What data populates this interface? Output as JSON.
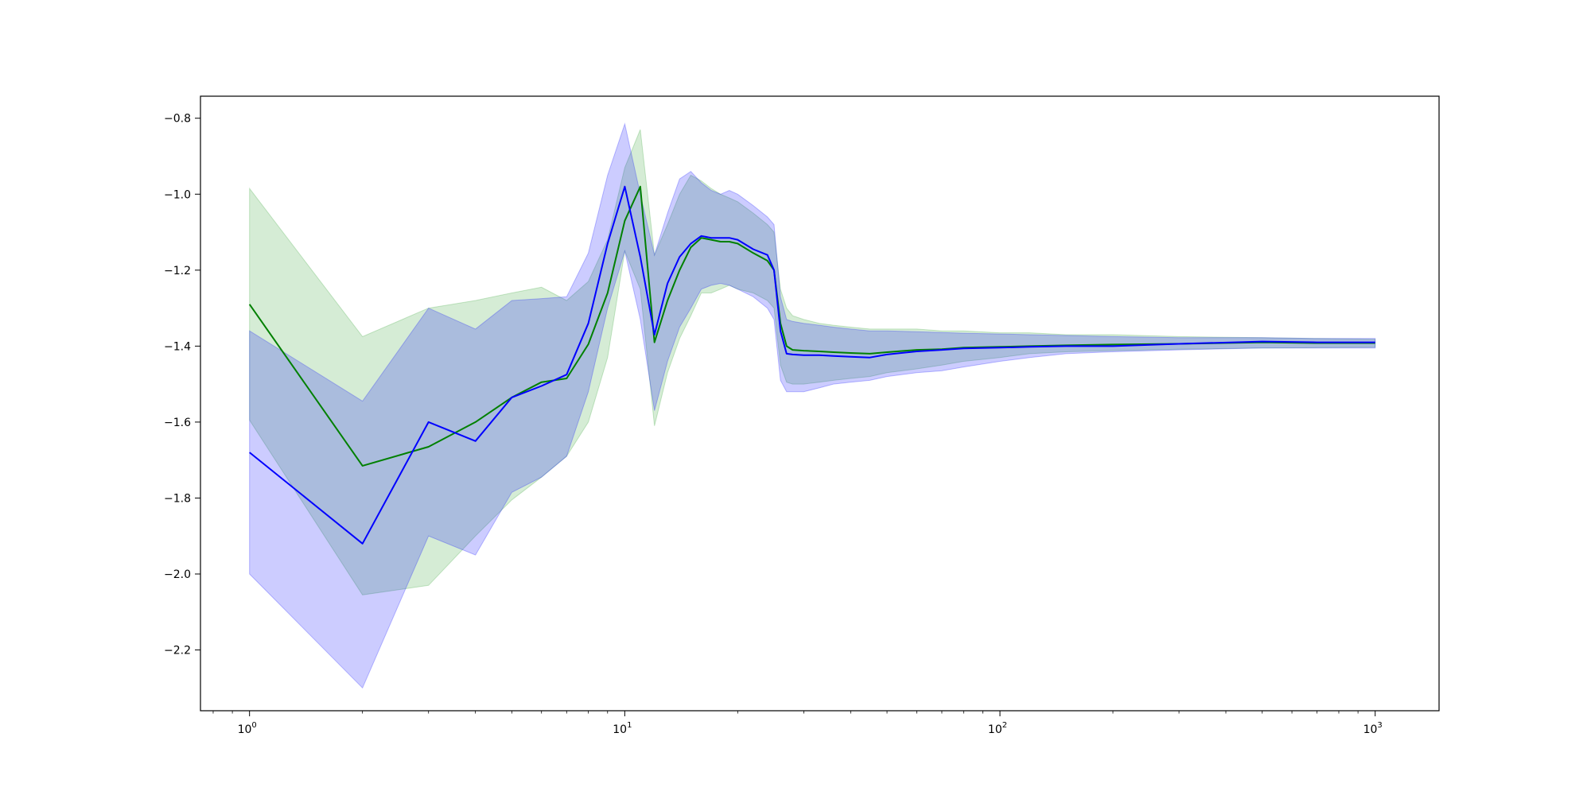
{
  "chart_data": {
    "type": "line",
    "title": "",
    "xlabel": "",
    "ylabel": "",
    "x_scale": "log",
    "xlim": [
      0.74,
      1480
    ],
    "ylim": [
      -2.36,
      -0.742
    ],
    "grid": false,
    "legend": "none",
    "x_ticks": [
      {
        "value": 1,
        "base": "10",
        "exp": "0"
      },
      {
        "value": 10,
        "base": "10",
        "exp": "1"
      },
      {
        "value": 100,
        "base": "10",
        "exp": "2"
      },
      {
        "value": 1000,
        "base": "10",
        "exp": "3"
      }
    ],
    "y_ticks": [
      {
        "value": -0.8,
        "label": "−0.8"
      },
      {
        "value": -1.0,
        "label": "−1.0"
      },
      {
        "value": -1.2,
        "label": "−1.2"
      },
      {
        "value": -1.4,
        "label": "−1.4"
      },
      {
        "value": -1.6,
        "label": "−1.6"
      },
      {
        "value": -1.8,
        "label": "−1.8"
      },
      {
        "value": -2.0,
        "label": "−2.0"
      },
      {
        "value": -2.2,
        "label": "−2.2"
      }
    ],
    "series": [
      {
        "color": "#008000",
        "band_color": "#2ca02c",
        "x": [
          1,
          2,
          3,
          4,
          5,
          6,
          7,
          8,
          9,
          10,
          11,
          12,
          13,
          14,
          15,
          16,
          17,
          18,
          19,
          20,
          22,
          24,
          25,
          26,
          27,
          28,
          30,
          33,
          36,
          40,
          45,
          50,
          60,
          70,
          80,
          100,
          120,
          150,
          200,
          300,
          500,
          700,
          1000
        ],
        "values": [
          -1.29,
          -1.715,
          -1.665,
          -1.6,
          -1.535,
          -1.495,
          -1.485,
          -1.395,
          -1.26,
          -1.07,
          -0.98,
          -1.39,
          -1.28,
          -1.2,
          -1.14,
          -1.115,
          -1.12,
          -1.125,
          -1.125,
          -1.13,
          -1.155,
          -1.175,
          -1.2,
          -1.34,
          -1.4,
          -1.41,
          -1.412,
          -1.414,
          -1.416,
          -1.418,
          -1.42,
          -1.416,
          -1.41,
          -1.408,
          -1.404,
          -1.402,
          -1.4,
          -1.398,
          -1.396,
          -1.394,
          -1.39,
          -1.392,
          -1.392
        ],
        "upper": [
          -0.985,
          -1.375,
          -1.3,
          -1.28,
          -1.26,
          -1.245,
          -1.28,
          -1.23,
          -1.12,
          -0.93,
          -0.83,
          -1.16,
          -1.08,
          -1.0,
          -0.95,
          -0.965,
          -0.985,
          -1.0,
          -1.01,
          -1.02,
          -1.05,
          -1.08,
          -1.1,
          -1.25,
          -1.3,
          -1.32,
          -1.33,
          -1.34,
          -1.345,
          -1.35,
          -1.355,
          -1.355,
          -1.355,
          -1.36,
          -1.36,
          -1.365,
          -1.365,
          -1.37,
          -1.37,
          -1.375,
          -1.378,
          -1.38,
          -1.382
        ],
        "lower": [
          -1.595,
          -2.055,
          -2.03,
          -1.9,
          -1.805,
          -1.745,
          -1.69,
          -1.6,
          -1.43,
          -1.15,
          -1.25,
          -1.61,
          -1.47,
          -1.38,
          -1.32,
          -1.26,
          -1.26,
          -1.25,
          -1.24,
          -1.25,
          -1.26,
          -1.28,
          -1.3,
          -1.45,
          -1.495,
          -1.5,
          -1.5,
          -1.495,
          -1.49,
          -1.485,
          -1.48,
          -1.47,
          -1.46,
          -1.45,
          -1.44,
          -1.43,
          -1.42,
          -1.415,
          -1.412,
          -1.408,
          -1.405,
          -1.404,
          -1.403
        ]
      },
      {
        "color": "#0000ff",
        "band_color": "#0000ff",
        "x": [
          1,
          2,
          3,
          4,
          5,
          6,
          7,
          8,
          9,
          10,
          11,
          12,
          13,
          14,
          15,
          16,
          17,
          18,
          19,
          20,
          22,
          24,
          25,
          26,
          27,
          28,
          30,
          33,
          36,
          40,
          45,
          50,
          60,
          70,
          80,
          100,
          120,
          150,
          200,
          300,
          500,
          700,
          1000
        ],
        "values": [
          -1.68,
          -1.92,
          -1.6,
          -1.65,
          -1.535,
          -1.505,
          -1.475,
          -1.34,
          -1.13,
          -0.98,
          -1.165,
          -1.37,
          -1.235,
          -1.165,
          -1.13,
          -1.11,
          -1.115,
          -1.115,
          -1.115,
          -1.12,
          -1.145,
          -1.16,
          -1.2,
          -1.36,
          -1.42,
          -1.422,
          -1.424,
          -1.424,
          -1.426,
          -1.428,
          -1.43,
          -1.422,
          -1.414,
          -1.41,
          -1.406,
          -1.404,
          -1.402,
          -1.4,
          -1.4,
          -1.394,
          -1.388,
          -1.39,
          -1.39
        ],
        "upper": [
          -1.36,
          -1.545,
          -1.3,
          -1.355,
          -1.28,
          -1.275,
          -1.27,
          -1.155,
          -0.95,
          -0.815,
          -1.0,
          -1.16,
          -1.05,
          -0.96,
          -0.94,
          -0.97,
          -0.99,
          -1.0,
          -0.99,
          -1.0,
          -1.03,
          -1.06,
          -1.08,
          -1.27,
          -1.33,
          -1.335,
          -1.34,
          -1.345,
          -1.35,
          -1.355,
          -1.36,
          -1.36,
          -1.362,
          -1.364,
          -1.366,
          -1.368,
          -1.37,
          -1.372,
          -1.375,
          -1.378,
          -1.378,
          -1.38,
          -1.38
        ],
        "lower": [
          -2.0,
          -2.3,
          -1.9,
          -1.95,
          -1.785,
          -1.745,
          -1.69,
          -1.52,
          -1.3,
          -1.15,
          -1.33,
          -1.57,
          -1.44,
          -1.35,
          -1.3,
          -1.25,
          -1.24,
          -1.235,
          -1.24,
          -1.25,
          -1.27,
          -1.3,
          -1.33,
          -1.49,
          -1.52,
          -1.52,
          -1.52,
          -1.51,
          -1.5,
          -1.495,
          -1.49,
          -1.48,
          -1.47,
          -1.465,
          -1.455,
          -1.44,
          -1.43,
          -1.42,
          -1.415,
          -1.41,
          -1.405,
          -1.405,
          -1.405
        ]
      }
    ]
  }
}
